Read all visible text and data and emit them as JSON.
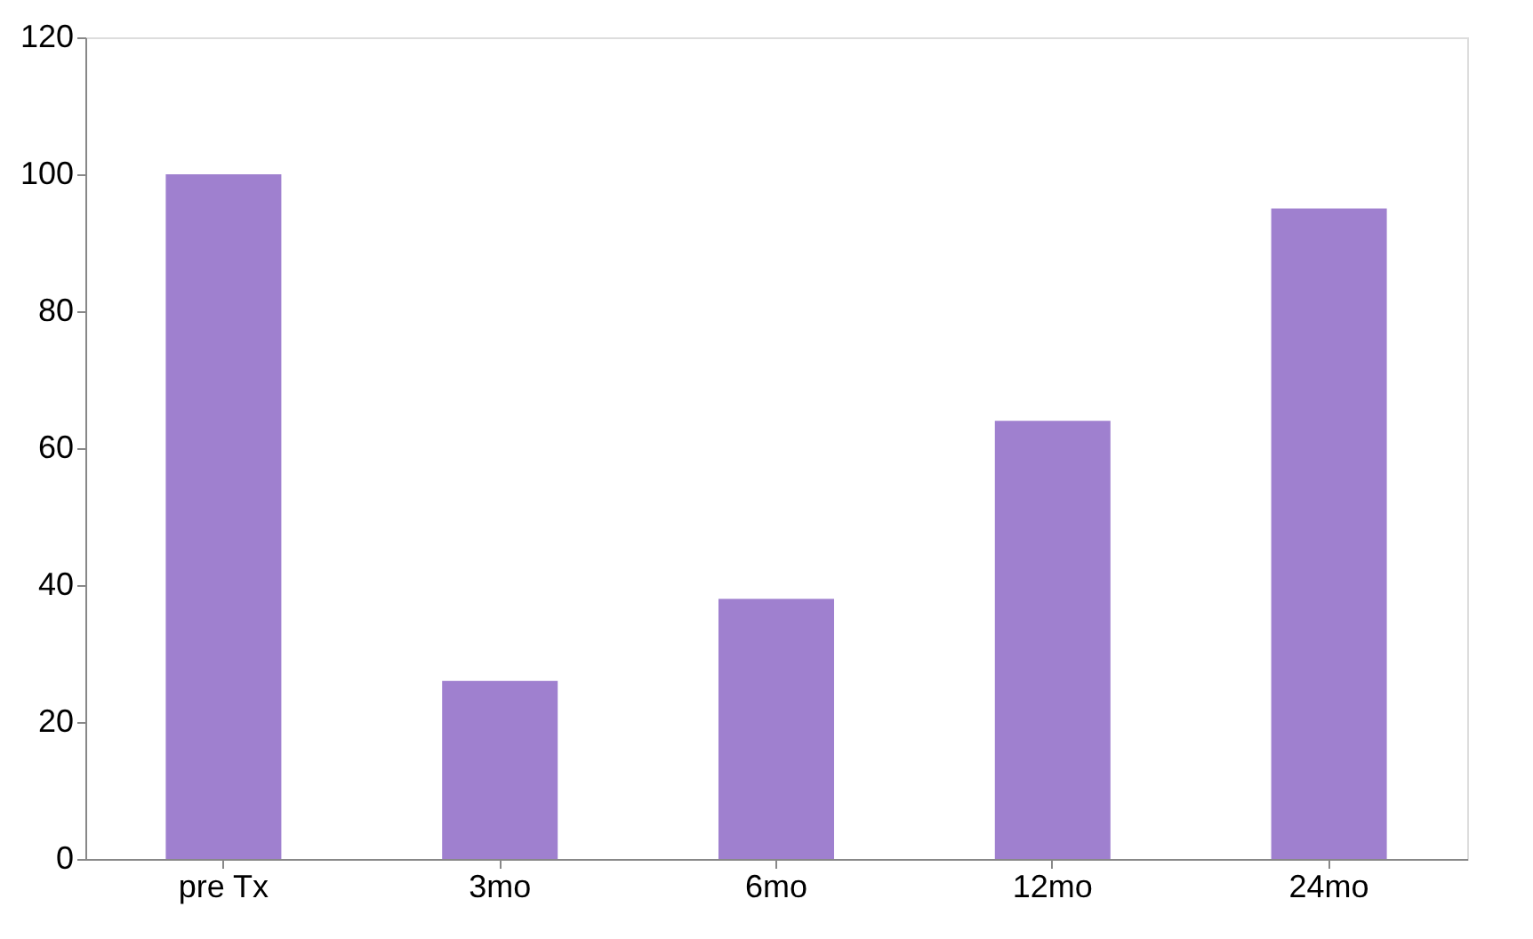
{
  "chart_data": {
    "type": "bar",
    "categories": [
      "pre Tx",
      "3mo",
      "6mo",
      "12mo",
      "24mo"
    ],
    "values": [
      100,
      26,
      38,
      64,
      95
    ],
    "color": "#9f80cf",
    "ylim": [
      0,
      120
    ],
    "yticks": [
      0,
      20,
      40,
      60,
      80,
      100,
      120
    ],
    "grid": false
  }
}
